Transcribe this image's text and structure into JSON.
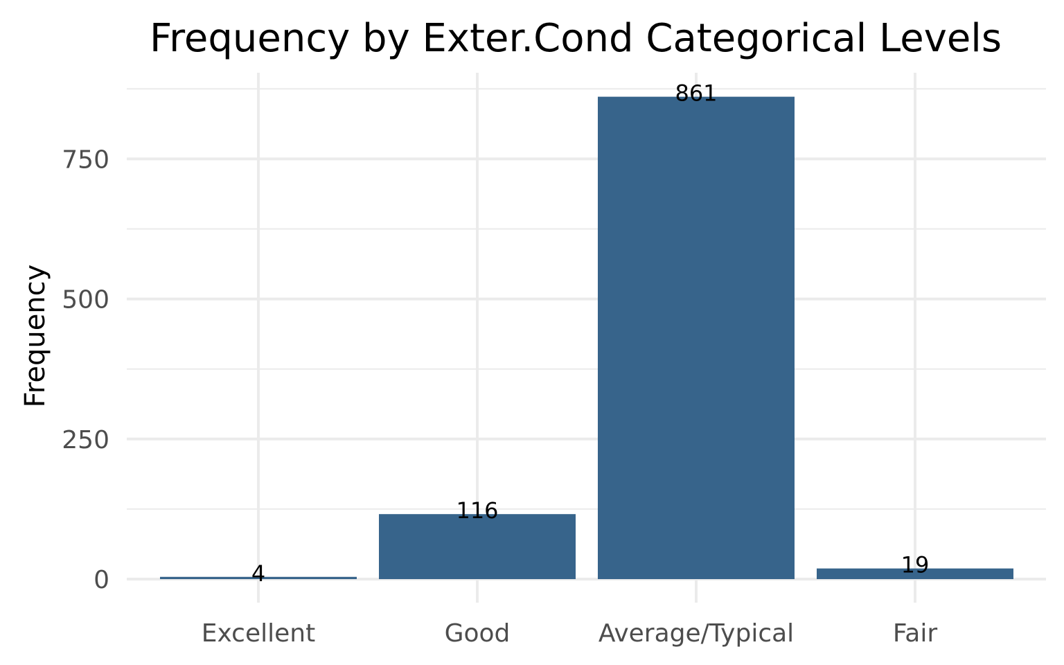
{
  "chart_data": {
    "type": "bar",
    "title": "Frequency by Exter.Cond Categorical Levels",
    "xlabel": "",
    "ylabel": "Frequency",
    "categories": [
      "Excellent",
      "Good",
      "Average/Typical",
      "Fair"
    ],
    "values": [
      4,
      116,
      861,
      19
    ],
    "data_labels": [
      "4",
      "116",
      "861",
      "19"
    ],
    "ylim": [
      0,
      890
    ],
    "yticks": [
      0,
      250,
      500,
      750
    ],
    "ytick_labels": [
      "0",
      "250",
      "500",
      "750"
    ],
    "grid": true,
    "legend": "none",
    "bar_color": "#37648b"
  }
}
